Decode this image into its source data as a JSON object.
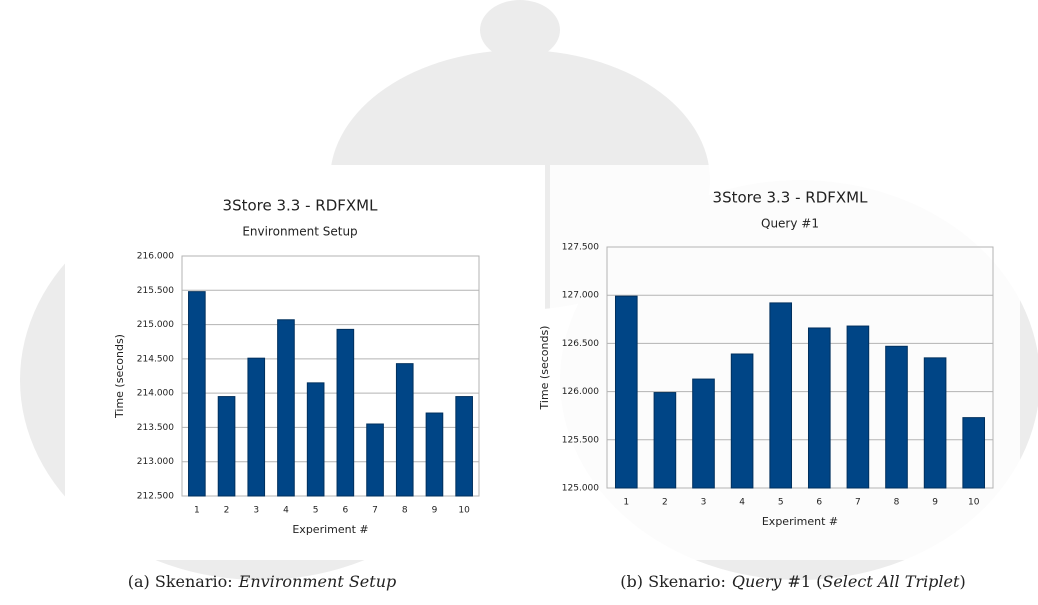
{
  "chart_data": [
    {
      "type": "bar",
      "title": "3Store 3.3 - RDFXML",
      "subtitle": "Environment Setup",
      "x_label": "Experiment #",
      "y_label": "Time (seconds)",
      "categories": [
        "1",
        "2",
        "3",
        "4",
        "5",
        "6",
        "7",
        "8",
        "9",
        "10"
      ],
      "values": [
        215.48,
        213.95,
        214.51,
        215.07,
        214.15,
        214.93,
        213.55,
        214.43,
        213.71,
        213.95
      ],
      "color": "#004586",
      "ylim": [
        212.5,
        216
      ],
      "yticks": [
        {
          "value": 212.5,
          "label": "212.500"
        },
        {
          "value": 213,
          "label": "213.000"
        },
        {
          "value": 213.5,
          "label": "213.500"
        },
        {
          "value": 214,
          "label": "214.000"
        },
        {
          "value": 214.5,
          "label": "214.500"
        },
        {
          "value": 215,
          "label": "215.000"
        },
        {
          "value": 215.5,
          "label": "215.500"
        },
        {
          "value": 216,
          "label": "216.000"
        }
      ],
      "grid": true,
      "caption": [
        {
          "text": "(a) Skenario:",
          "italic": false
        },
        {
          "text": "Environment Setup",
          "italic": true
        }
      ]
    },
    {
      "type": "bar",
      "title": "3Store 3.3 - RDFXML",
      "subtitle": "Query #1",
      "x_label": "Experiment #",
      "y_label": "Time (seconds)",
      "categories": [
        "1",
        "2",
        "3",
        "4",
        "5",
        "6",
        "7",
        "8",
        "9",
        "10"
      ],
      "values": [
        126.99,
        125.99,
        126.13,
        126.39,
        126.92,
        126.66,
        126.68,
        126.47,
        126.35,
        125.73
      ],
      "color": "#004586",
      "ylim": [
        125,
        127.5
      ],
      "yticks": [
        {
          "value": 125,
          "label": "125.000"
        },
        {
          "value": 125.5,
          "label": "125.500"
        },
        {
          "value": 126,
          "label": "126.000"
        },
        {
          "value": 126.5,
          "label": "126.500"
        },
        {
          "value": 127,
          "label": "127.000"
        },
        {
          "value": 127.5,
          "label": "127.500"
        }
      ],
      "grid": true,
      "caption": [
        {
          "text": "(b) Skenario:",
          "italic": false
        },
        {
          "text": "Query",
          "italic": true
        },
        {
          "text": "#1 (",
          "italic": false
        },
        {
          "text": "Select All Triplet",
          "italic": true
        },
        {
          "text": ")",
          "italic": false
        }
      ]
    }
  ]
}
